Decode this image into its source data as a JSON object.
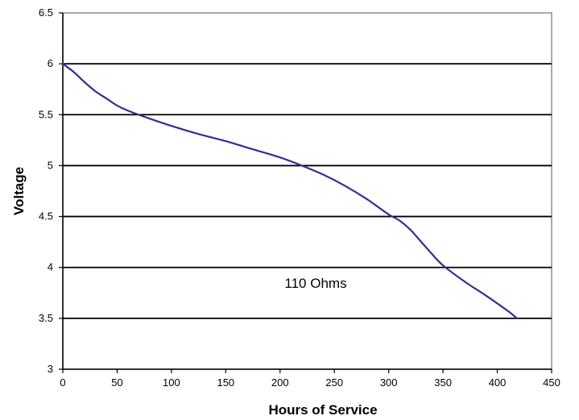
{
  "chart_data": {
    "type": "line",
    "title": "",
    "xlabel": "Hours of Service",
    "ylabel": "Voltage",
    "xlim": [
      0,
      450
    ],
    "ylim": [
      3,
      6.5
    ],
    "x_ticks": [
      0,
      50,
      100,
      150,
      200,
      250,
      300,
      350,
      400,
      450
    ],
    "y_ticks": [
      3,
      3.5,
      4,
      4.5,
      5,
      5.5,
      6,
      6.5
    ],
    "y_tick_labels": [
      "3",
      "3.5",
      "4",
      "4.5",
      "5",
      "5.5",
      "6",
      "6.5"
    ],
    "grid": "horizontal",
    "legend": "none",
    "annotation": "110 Ohms",
    "series": [
      {
        "color": "#2e3192",
        "x": [
          0,
          10,
          20,
          30,
          40,
          50,
          60,
          75,
          100,
          125,
          150,
          175,
          200,
          220,
          240,
          260,
          280,
          300,
          310,
          320,
          330,
          340,
          350,
          370,
          390,
          410,
          418
        ],
        "y": [
          6.0,
          5.92,
          5.82,
          5.73,
          5.66,
          5.59,
          5.54,
          5.48,
          5.39,
          5.31,
          5.24,
          5.16,
          5.08,
          5.0,
          4.91,
          4.8,
          4.67,
          4.52,
          4.46,
          4.37,
          4.25,
          4.13,
          4.02,
          3.86,
          3.72,
          3.57,
          3.5
        ]
      }
    ]
  }
}
